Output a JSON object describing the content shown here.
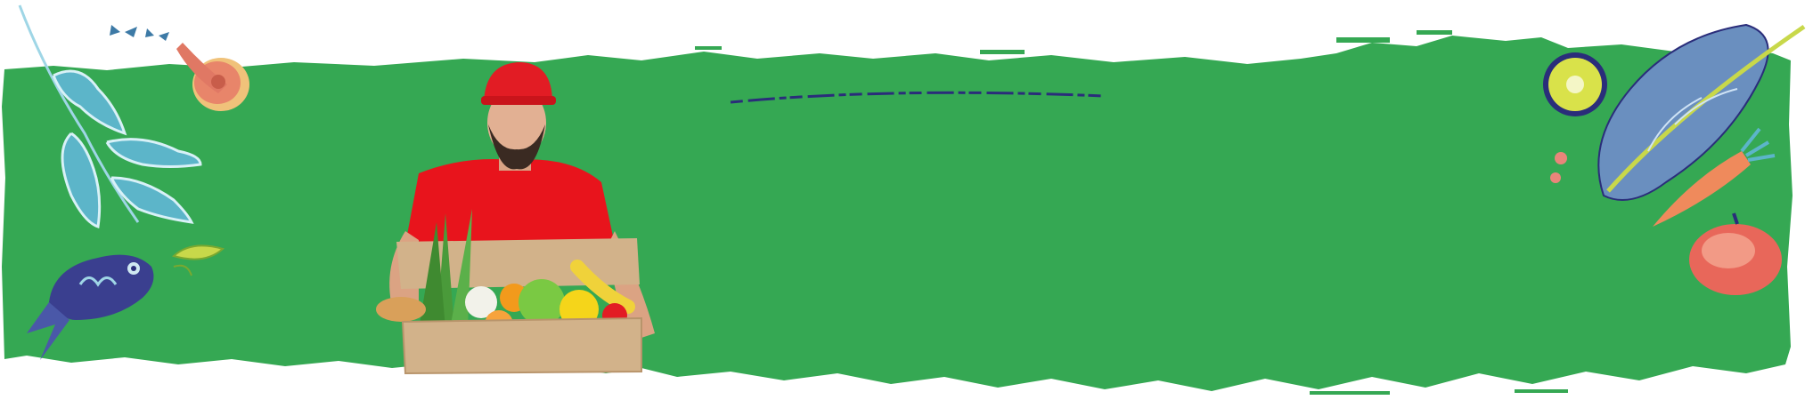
{
  "banner": {
    "background_color": "#35a853",
    "page_color": "#ffffff",
    "ink_color": "#2a2d7a"
  },
  "illustrations": {
    "left": [
      "herb-sprig-icon",
      "mushroom-icon",
      "fish-icon",
      "leaf-icon",
      "seedling-icon"
    ],
    "right": [
      "kiwi-icon",
      "cabbage-leaf-icon",
      "carrot-icon",
      "apple-icon",
      "berries-icon"
    ]
  },
  "photo": {
    "subject": "delivery-man-with-grocery-box",
    "cap_color": "#e21c24",
    "shirt_color": "#e8141c",
    "box_color": "#d2b28a"
  }
}
